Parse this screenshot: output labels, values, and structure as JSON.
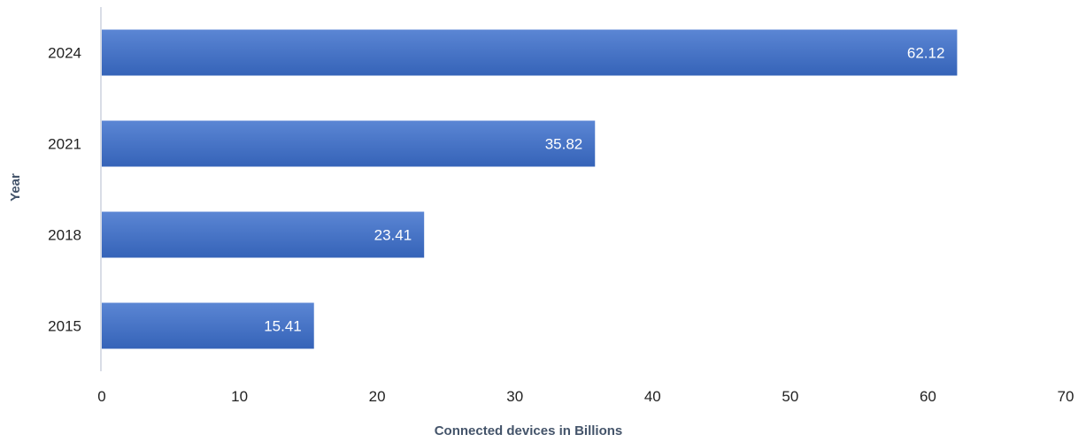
{
  "chart_data": {
    "type": "bar",
    "orientation": "horizontal",
    "categories": [
      "2015",
      "2018",
      "2021",
      "2024"
    ],
    "values": [
      15.41,
      23.41,
      35.82,
      62.12
    ],
    "data_labels": [
      "15.41",
      "23.41",
      "35.82",
      "62.12"
    ],
    "xlabel": "Connected devices in Billions",
    "ylabel": "Year",
    "xlim": [
      0,
      70
    ],
    "x_ticks": [
      "0",
      "10",
      "20",
      "30",
      "40",
      "50",
      "60",
      "70"
    ],
    "grid": false,
    "legend": "none",
    "colors": {
      "bar": "#4472c4",
      "bar_top": "#5b86d4",
      "bar_bottom": "#3563b8",
      "data_label": "#ffffff",
      "axis_line": "#d9dde6",
      "axis_title": "#44546a"
    }
  }
}
